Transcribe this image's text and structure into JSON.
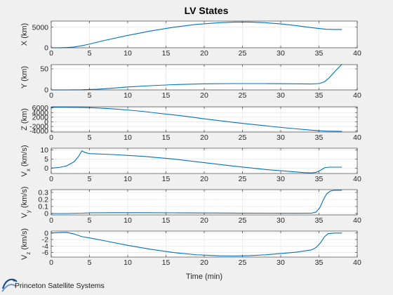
{
  "chart_data": {
    "type": "line",
    "title": "LV States",
    "xlabel": "Time (min)",
    "xlim": [
      0,
      40
    ],
    "xticks": [
      0,
      5,
      10,
      15,
      20,
      25,
      30,
      35,
      40
    ],
    "grid": true,
    "line_color": "#0072bd",
    "subplots": [
      {
        "ylabel": "X (km)",
        "ylabel_parts": [],
        "ylim": [
          0,
          6500
        ],
        "yticks": [
          0,
          5000
        ],
        "points": [
          [
            0,
            0
          ],
          [
            1,
            0
          ],
          [
            2,
            50
          ],
          [
            3,
            180
          ],
          [
            4,
            500
          ],
          [
            5,
            900
          ],
          [
            7,
            1800
          ],
          [
            10,
            3000
          ],
          [
            13,
            4100
          ],
          [
            16,
            5000
          ],
          [
            19,
            5700
          ],
          [
            22,
            6100
          ],
          [
            24,
            6250
          ],
          [
            26,
            6250
          ],
          [
            28,
            6100
          ],
          [
            30,
            5800
          ],
          [
            32,
            5400
          ],
          [
            34,
            4900
          ],
          [
            35,
            4700
          ],
          [
            36,
            4500
          ],
          [
            37,
            4450
          ],
          [
            38,
            4450
          ]
        ]
      },
      {
        "ylabel": "",
        "ylabel_parts": [
          {
            "text": "Y (km)",
            "sub": false
          }
        ],
        "ylim": [
          0,
          60
        ],
        "yticks": [
          0,
          50
        ],
        "points": [
          [
            0,
            0
          ],
          [
            2,
            0
          ],
          [
            4,
            0.3
          ],
          [
            6,
            1.5
          ],
          [
            8,
            4
          ],
          [
            10,
            7
          ],
          [
            13,
            10
          ],
          [
            16,
            12.5
          ],
          [
            20,
            14.5
          ],
          [
            24,
            15
          ],
          [
            28,
            15
          ],
          [
            32,
            14.5
          ],
          [
            34,
            14
          ],
          [
            35,
            15
          ],
          [
            35.7,
            19
          ],
          [
            36.3,
            28
          ],
          [
            37,
            42
          ],
          [
            38,
            61
          ]
        ]
      },
      {
        "ylabel": "",
        "ylabel_parts": [
          {
            "text": "Z (km)",
            "sub": false
          }
        ],
        "ylim": [
          -4400,
          6500
        ],
        "yticks": [
          -4000,
          -2000,
          0,
          2000,
          4000,
          6000
        ],
        "points": [
          [
            0,
            6300
          ],
          [
            2,
            6300
          ],
          [
            4,
            6200
          ],
          [
            6,
            6000
          ],
          [
            8,
            5600
          ],
          [
            10,
            5100
          ],
          [
            12,
            4500
          ],
          [
            14,
            3700
          ],
          [
            16,
            3000
          ],
          [
            18,
            2200
          ],
          [
            20,
            1300
          ],
          [
            22,
            500
          ],
          [
            24,
            -300
          ],
          [
            26,
            -1000
          ],
          [
            28,
            -1700
          ],
          [
            30,
            -2400
          ],
          [
            32,
            -3000
          ],
          [
            34,
            -3600
          ],
          [
            35,
            -3800
          ],
          [
            36,
            -4000
          ],
          [
            37,
            -4050
          ],
          [
            38,
            -4100
          ]
        ]
      },
      {
        "ylabel": "",
        "ylabel_parts": [
          {
            "text": "V",
            "sub": false
          },
          {
            "text": "x",
            "sub": true
          },
          {
            "text": " (km/s)",
            "sub": false
          }
        ],
        "ylim": [
          -3,
          11
        ],
        "yticks": [
          0,
          5,
          10
        ],
        "points": [
          [
            0,
            0
          ],
          [
            1,
            0.3
          ],
          [
            2,
            1.2
          ],
          [
            3,
            3.5
          ],
          [
            3.5,
            6
          ],
          [
            4,
            9.5
          ],
          [
            4.5,
            8.5
          ],
          [
            5,
            8
          ],
          [
            8,
            7.5
          ],
          [
            12,
            6.5
          ],
          [
            16,
            5
          ],
          [
            20,
            3
          ],
          [
            24,
            1
          ],
          [
            28,
            -0.8
          ],
          [
            31,
            -1.8
          ],
          [
            33,
            -2.5
          ],
          [
            34,
            -2.7
          ],
          [
            34.6,
            -2.4
          ],
          [
            35.2,
            -1.2
          ],
          [
            35.8,
            0.3
          ],
          [
            36.5,
            0.5
          ],
          [
            38,
            0.5
          ]
        ]
      },
      {
        "ylabel": "",
        "ylabel_parts": [
          {
            "text": "V",
            "sub": false
          },
          {
            "text": "y",
            "sub": true
          },
          {
            "text": " (km/s)",
            "sub": false
          }
        ],
        "ylim": [
          -0.02,
          0.34
        ],
        "yticks": [
          0,
          0.1,
          0.2,
          0.3
        ],
        "points": [
          [
            0,
            0
          ],
          [
            2,
            0
          ],
          [
            4,
            0.005
          ],
          [
            5,
            0.01
          ],
          [
            8,
            0.012
          ],
          [
            12,
            0.012
          ],
          [
            16,
            0.01
          ],
          [
            20,
            0.008
          ],
          [
            24,
            0.006
          ],
          [
            28,
            0.005
          ],
          [
            32,
            0.004
          ],
          [
            34,
            0.005
          ],
          [
            34.6,
            0.02
          ],
          [
            35.1,
            0.08
          ],
          [
            35.6,
            0.2
          ],
          [
            36,
            0.28
          ],
          [
            36.5,
            0.32
          ],
          [
            37,
            0.33
          ],
          [
            38,
            0.33
          ]
        ]
      },
      {
        "ylabel": "",
        "ylabel_parts": [
          {
            "text": "V",
            "sub": false
          },
          {
            "text": "z",
            "sub": true
          },
          {
            "text": " (km/s)",
            "sub": false
          }
        ],
        "ylim": [
          -7.4,
          0.6
        ],
        "yticks": [
          -6,
          -4,
          -2,
          0
        ],
        "points": [
          [
            0,
            0
          ],
          [
            1,
            0.15
          ],
          [
            2,
            0.2
          ],
          [
            3,
            -0.3
          ],
          [
            4,
            -1.1
          ],
          [
            5,
            -1.5
          ],
          [
            7,
            -2.4
          ],
          [
            10,
            -3.8
          ],
          [
            13,
            -5
          ],
          [
            16,
            -6
          ],
          [
            19,
            -6.7
          ],
          [
            22,
            -7
          ],
          [
            24,
            -7.05
          ],
          [
            26,
            -6.95
          ],
          [
            28,
            -6.7
          ],
          [
            30,
            -6.3
          ],
          [
            32,
            -5.9
          ],
          [
            34,
            -5.2
          ],
          [
            34.6,
            -4.5
          ],
          [
            35.2,
            -3
          ],
          [
            35.7,
            -1.2
          ],
          [
            36.2,
            -0.2
          ],
          [
            37,
            0
          ],
          [
            38,
            0
          ]
        ]
      }
    ]
  },
  "logo": {
    "text": "Princeton Satellite Systems",
    "color": "#1a4d8c"
  }
}
